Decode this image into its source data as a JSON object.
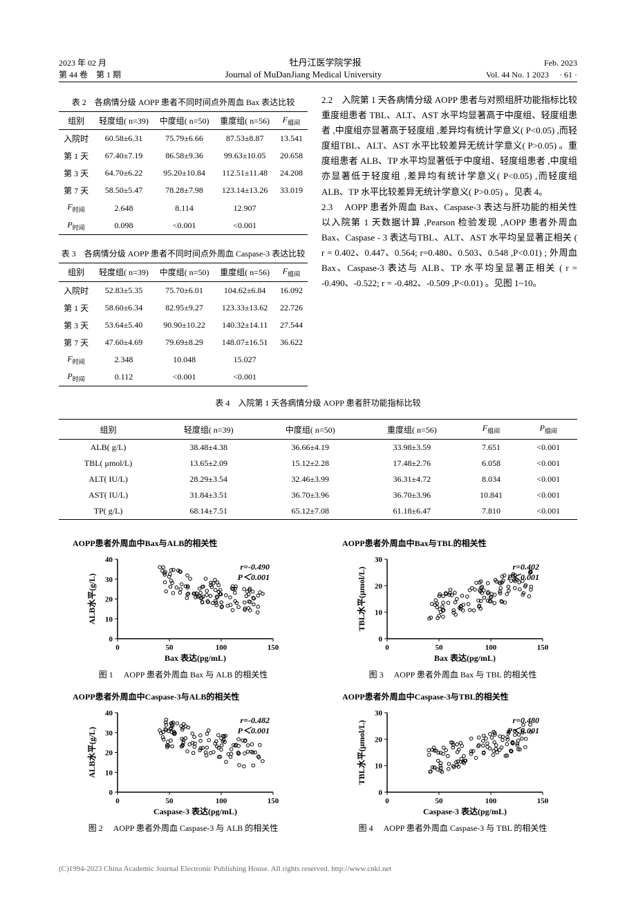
{
  "header": {
    "date_cn": "2023 年 02 月",
    "volume_cn": "第 44 卷　第 1 期",
    "journal_cn": "牡丹江医学院学报",
    "journal_en": "Journal of MuDanJiang Medical University",
    "date_en": "Feb. 2023",
    "volume_en": "Vol. 44 No. 1 2023",
    "page": "· 61 ·"
  },
  "table2": {
    "caption": "表 2　各病情分级 AOPP 患者不同时间点外周血 Bax 表达比较",
    "headers": [
      "组别",
      "轻度组( n=39)",
      "中度组( n=50)",
      "重度组( n=56)"
    ],
    "f_header": "F",
    "f_sub": "组间",
    "rows": [
      [
        "入院时",
        "60.58±6.31",
        "75.79±6.66",
        "87.53±8.87",
        "13.541"
      ],
      [
        "第 1 天",
        "67.40±7.19",
        "86.58±9.36",
        "99.63±10.05",
        "20.658"
      ],
      [
        "第 3 天",
        "64.70±6.22",
        "95.20±10.84",
        "112.51±11.48",
        "24.208"
      ],
      [
        "第 7 天",
        "58.50±5.47",
        "78.28±7.98",
        "123.14±13.26",
        "33.019"
      ]
    ],
    "f_row": [
      "2.648",
      "8.114",
      "12.907"
    ],
    "p_row": [
      "0.098",
      "<0.001",
      "<0.001"
    ],
    "f_label": "F",
    "p_label": "P",
    "time_sub": "时间"
  },
  "table3": {
    "caption": "表 3　各病情分级 AOPP 患者不同时间点外周血 Caspase-3 表达比较",
    "headers": [
      "组别",
      "轻度组( n=39)",
      "中度组( n=50)",
      "重度组( n=56)"
    ],
    "rows": [
      [
        "入院时",
        "52.83±5.35",
        "75.70±6.01",
        "104.62±6.84",
        "16.092"
      ],
      [
        "第 1 天",
        "58.60±6.34",
        "82.95±9.27",
        "123.33±13.62",
        "22.726"
      ],
      [
        "第 3 天",
        "53.64±5.40",
        "90.90±10.22",
        "140.32±14.11",
        "27.544"
      ],
      [
        "第 7 天",
        "47.60±4.69",
        "79.69±8.29",
        "148.07±16.51",
        "36.622"
      ]
    ],
    "f_row": [
      "2.348",
      "10.048",
      "15.027"
    ],
    "p_row": [
      "0.112",
      "<0.001",
      "<0.001"
    ]
  },
  "body_text_1": "2.2　入院第 1 天各病情分级 AOPP 患者与对照组肝功能指标比较　重度组患者 TBL、ALT、AST 水平均显著高于中度组、轻度组患者 ,中度组亦显著高于轻度组 ,差异均有统计学意义( P<0.05) ,而轻度组TBL、ALT、AST 水平比较差异无统计学意义( P>0.05) 。重度组患者 ALB、TP 水平均显著低于中度组、轻度组患者 ,中度组亦显著低于轻度组 ,差异均有统计学意义( P<0.05) ,而轻度组 ALB、TP 水平比较差异无统计学意义( P>0.05) 。见表 4。",
  "body_text_2": "2.3　 AOPP 患者外周血 Bax、Caspase-3 表达与肝功能的相关性　以入院第 1 天数据计算 ,Pearson 检验发现 ,AOPP 患者外周血 Bax、Caspase - 3 表达与TBL、ALT、AST 水平均呈显著正相关 ( r = 0.402、0.447、0.564; r=0.480、0.503、0.548 ,P<0.01) ; 外周血 Bax、Caspase-3 表达与 ALB、TP 水平均呈显著正相关 ( r = -0.490、-0.522; r = -0.482、-0.509 ,P<0.01) 。见图 1~10。",
  "table4": {
    "caption": "表 4　入院第 1 天各病情分级 AOPP 患者肝功能指标比较",
    "headers": [
      "组别",
      "轻度组( n=39)",
      "中度组( n=50)",
      "重度组( n=56)"
    ],
    "f_header": "F",
    "p_header": "P",
    "sub": "组间",
    "rows": [
      [
        "ALB( g/L)",
        "38.48±4.38",
        "36.66±4.19",
        "33.98±3.59",
        "7.651",
        "<0.001"
      ],
      [
        "TBL( μmol/L)",
        "13.65±2.09",
        "15.12±2.28",
        "17.48±2.76",
        "6.058",
        "<0.001"
      ],
      [
        "ALT( IU/L)",
        "28.29±3.54",
        "32.46±3.99",
        "36.31±4.72",
        "8.034",
        "<0.001"
      ],
      [
        "AST( IU/L)",
        "31.84±3.51",
        "36.70±3.96",
        "36.70±3.96",
        "10.841",
        "<0.001"
      ],
      [
        "TP( g/L)",
        "68.14±7.51",
        "65.12±7.08",
        "61.18±6.47",
        "7.810",
        "<0.001"
      ]
    ]
  },
  "figures": [
    {
      "title": "AOPP患者外周血中Bax与ALB的相关性",
      "ylabel": "ALB水平(g/L)",
      "xlabel": "Bax 表达(pg/mL)",
      "r_text": "r=-0.490",
      "p_text": "P＜0.001",
      "caption": "图 1　 AOPP 患者外周血 Bax 与 ALB 的相关性",
      "xmax": 150,
      "ymax": 40,
      "xticks": [
        0,
        50,
        100,
        150
      ],
      "yticks": [
        0,
        10,
        20,
        30,
        40
      ],
      "trend": "negative"
    },
    {
      "title": "AOPP患者外周血中Caspase-3与ALB的相关性",
      "ylabel": "ALB水平(g/L)",
      "xlabel": "Caspase-3 表达(pg/mL)",
      "r_text": "r=-0.482",
      "p_text": "P＜0.001",
      "caption": "图 2　 AOPP 患者外周血 Caspase-3 与 ALB 的相关性",
      "xmax": 150,
      "ymax": 40,
      "xticks": [
        0,
        50,
        100,
        150
      ],
      "yticks": [
        0,
        10,
        20,
        30,
        40
      ],
      "trend": "negative"
    },
    {
      "title": "AOPP患者外周血中Bax与TBL的相关性",
      "ylabel": "TBL水平(μmol/L)",
      "xlabel": "Bax 表达(pg/mL)",
      "r_text": "r=0.402",
      "p_text": "P＜0.001",
      "caption": "图 3　 AOPP 患者外周血 Bax 与 TBL 的相关性",
      "xmax": 150,
      "ymax": 30,
      "xticks": [
        0,
        50,
        100,
        150
      ],
      "yticks": [
        0,
        10,
        20,
        30
      ],
      "trend": "positive"
    },
    {
      "title": "AOPP患者外周血中Caspase-3与TBL的相关性",
      "ylabel": "TBL水平(μmol/L)",
      "xlabel": "Caspase-3 表达(pg/mL)",
      "r_text": "r=0.480",
      "p_text": "P＜0.001",
      "caption": "图 4　 AOPP 患者外周血 Caspase-3 与 TBL 的相关性",
      "xmax": 150,
      "ymax": 30,
      "xticks": [
        0,
        50,
        100,
        150
      ],
      "yticks": [
        0,
        10,
        20,
        30
      ],
      "trend": "positive"
    }
  ],
  "footer": "(C)1994-2023 China Academic Journal Electronic Publishing House. All rights reserved.   http://www.cnki.net",
  "chart_style": {
    "point_color": "#000000",
    "point_radius": 2.5,
    "stroke_color": "#000000",
    "bg": "#ffffff",
    "font_size": 10
  }
}
